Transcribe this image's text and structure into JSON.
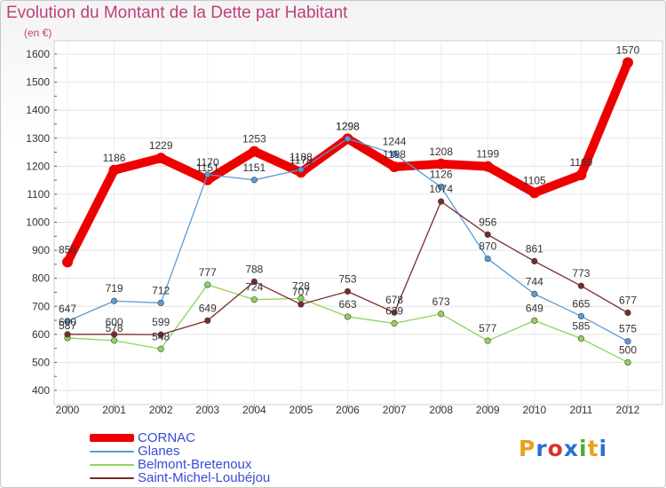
{
  "title": "Evolution du Montant de la Dette par Habitant",
  "subtitle": "(en €)",
  "logo_text": "Proxiti",
  "logo_colors": [
    "#e8a11c",
    "#2a6fd6",
    "#d9342b",
    "#2a6fd6",
    "#4caf2f",
    "#e8a11c",
    "#2a6fd6"
  ],
  "chart_data": {
    "type": "line",
    "title": "Evolution du Montant de la Dette par Habitant",
    "subtitle": "(en €)",
    "x": [
      "2000",
      "2001",
      "2002",
      "2003",
      "2004",
      "2005",
      "2006",
      "2007",
      "2008",
      "2009",
      "2010",
      "2011",
      "2012"
    ],
    "ylim": [
      400,
      1600
    ],
    "yticks": [
      400,
      500,
      600,
      700,
      800,
      900,
      1000,
      1100,
      1200,
      1300,
      1400,
      1500,
      1600
    ],
    "grid": true,
    "legend_position": "bottom-left",
    "series": [
      {
        "name": "CORNAC",
        "color": "#ee0000",
        "width": 10,
        "values": [
          858,
          1186,
          1229,
          1151,
          1253,
          1178,
          1298,
          1198,
          1208,
          1199,
          1105,
          1169,
          1570
        ]
      },
      {
        "name": "Glanes",
        "color": "#5b9bd5",
        "width": 1.3,
        "values": [
          647,
          719,
          712,
          1170,
          1151,
          1188,
          1298,
          1244,
          1126,
          870,
          744,
          665,
          575
        ]
      },
      {
        "name": "Belmont-Bretenoux",
        "color": "#8ed45a",
        "width": 1.3,
        "values": [
          587,
          578,
          548,
          777,
          724,
          728,
          663,
          639,
          673,
          577,
          649,
          585,
          500
        ]
      },
      {
        "name": "Saint-Michel-Loubéjou",
        "color": "#7a2a2a",
        "width": 1.3,
        "values": [
          600,
          600,
          599,
          649,
          788,
          707,
          753,
          678,
          1074,
          956,
          861,
          773,
          677
        ]
      }
    ]
  }
}
